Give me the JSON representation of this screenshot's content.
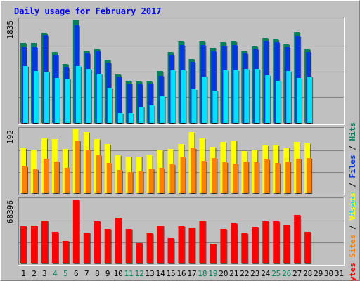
{
  "chart_data": {
    "type": "bar",
    "title": "Daily usage for February 2017",
    "categories": [
      "1",
      "2",
      "3",
      "4",
      "5",
      "6",
      "7",
      "8",
      "9",
      "10",
      "11",
      "12",
      "13",
      "14",
      "15",
      "16",
      "17",
      "18",
      "19",
      "20",
      "21",
      "22",
      "23",
      "24",
      "25",
      "26",
      "27",
      "28",
      "29",
      "30",
      "31"
    ],
    "weekend_days": [
      4,
      5,
      11,
      12,
      18,
      19,
      25,
      26
    ],
    "colors": {
      "hits": "#00805c",
      "files": "#0038e0",
      "pages": "#00e0ff",
      "visits": "#ffff00",
      "sites": "#ff8000",
      "kbytes": "#ff0000",
      "title": "#0000ff",
      "weekend_label": "#00805c",
      "weekday_label": "#000000"
    },
    "panels": [
      {
        "id": "usage",
        "max_label": "1835",
        "ymax": 1835,
        "legend": [
          "Pages",
          "Files",
          "Hits"
        ],
        "separator": "/",
        "series": [
          {
            "name": "Hits",
            "values": [
              1420,
              1420,
              1600,
              1260,
              1050,
              1835,
              1290,
              1310,
              1120,
              860,
              750,
              740,
              740,
              920,
              1260,
              1450,
              1140,
              1450,
              1330,
              1430,
              1450,
              1290,
              1360,
              1510,
              1490,
              1400,
              1610,
              1310
            ]
          },
          {
            "name": "Files",
            "values": [
              1350,
              1350,
              1560,
              1210,
              990,
              1735,
              1240,
              1270,
              1070,
              820,
              700,
              690,
              700,
              840,
              1210,
              1390,
              1090,
              1380,
              1270,
              1370,
              1390,
              1240,
              1310,
              1450,
              1440,
              1350,
              1550,
              1260
            ]
          },
          {
            "name": "Pages",
            "values": [
              1010,
              920,
              910,
              800,
              790,
              1010,
              960,
              870,
              620,
              180,
              180,
              290,
              310,
              480,
              930,
              940,
              600,
              830,
              580,
              930,
              940,
              960,
              960,
              850,
              750,
              920,
              800,
              820
            ]
          }
        ]
      },
      {
        "id": "visitors",
        "max_label": "192",
        "ymax": 192,
        "legend": [
          "Sites",
          "Visits"
        ],
        "separator": "/",
        "series": [
          {
            "name": "Visits",
            "values": [
              136,
              128,
              165,
              163,
              133,
              192,
              183,
              163,
              148,
              113,
              110,
              110,
              114,
              129,
              132,
              148,
              183,
              165,
              139,
              155,
              159,
              127,
              128,
              143,
              144,
              137,
              153,
              150
            ]
          },
          {
            "name": "Sites",
            "values": [
              80,
              71,
              104,
              95,
              77,
              158,
              131,
              114,
              90,
              70,
              64,
              66,
              74,
              77,
              86,
              108,
              136,
              97,
              106,
              92,
              89,
              94,
              92,
              101,
              90,
              95,
              103,
              105
            ]
          }
        ]
      },
      {
        "id": "kbytes",
        "max_label": "68396",
        "ymax": 68396,
        "legend": [
          "KBytes"
        ],
        "separator": "",
        "series": [
          {
            "name": "KBytes",
            "values": [
              40000,
              40500,
              46000,
              34000,
              24000,
              68396,
              33000,
              45000,
              37000,
              49000,
              36500,
              22000,
              32000,
              40500,
              27000,
              40000,
              38000,
              45500,
              21000,
              36500,
              42500,
              32000,
              39000,
              45000,
              45000,
              41500,
              52000,
              34000
            ]
          }
        ]
      }
    ]
  }
}
